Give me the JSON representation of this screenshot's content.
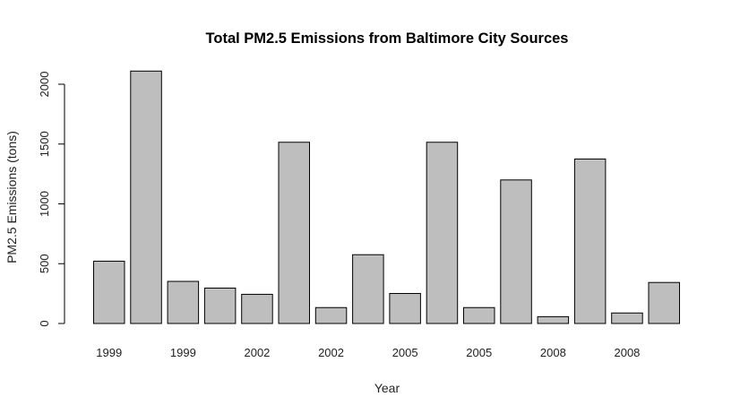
{
  "chart_data": {
    "type": "bar",
    "title": "Total PM2.5 Emissions from Baltimore City Sources",
    "xlabel": "Year",
    "ylabel": "PM2.5 Emissions (tons)",
    "ylim": [
      0,
      2200
    ],
    "yticks": [
      "0",
      "500",
      "1000",
      "1500",
      "2000"
    ],
    "xtick_labels": [
      "1999",
      "1999",
      "2002",
      "2002",
      "2005",
      "2005",
      "2008",
      "2008"
    ],
    "values": [
      521,
      2110,
      352,
      296,
      244,
      1515,
      133,
      575,
      251,
      1515,
      133,
      1200,
      57,
      1375,
      88,
      343
    ],
    "bar_color": "#bebebe",
    "grid": false
  }
}
